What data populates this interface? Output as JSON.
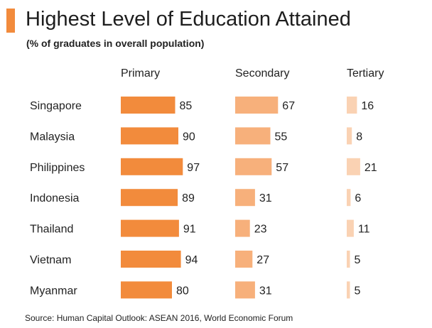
{
  "chart_data": {
    "type": "bar",
    "title": "Highest Level of Education Attained",
    "subtitle": "(% of graduates in overall population)",
    "categories": [
      "Singapore",
      "Malaysia",
      "Philippines",
      "Indonesia",
      "Thailand",
      "Vietnam",
      "Myanmar"
    ],
    "series": [
      {
        "name": "Primary",
        "values": [
          85,
          90,
          97,
          89,
          91,
          94,
          80
        ],
        "color": "#f28b3c"
      },
      {
        "name": "Secondary",
        "values": [
          67,
          55,
          57,
          31,
          23,
          27,
          31
        ],
        "color": "#f7b07b"
      },
      {
        "name": "Tertiary",
        "values": [
          16,
          8,
          21,
          6,
          11,
          5,
          5
        ],
        "color": "#fad2b3"
      }
    ],
    "xlim": [
      0,
      100
    ],
    "legend": "column headers",
    "source": "Source: Human Capital Outlook: ASEAN 2016, World Economic Forum"
  },
  "colors": {
    "accent": "#f28b3c",
    "text": "#222222"
  }
}
